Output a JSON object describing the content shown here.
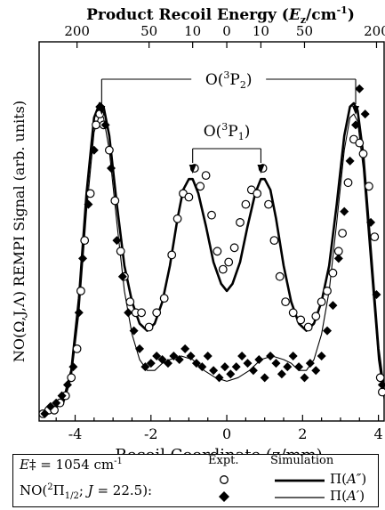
{
  "chart_data": {
    "type": "line",
    "title": "",
    "xlabel": "Recoil Coordinate (z/mm)",
    "ylabel": "NO(Ω,J,Λ) REMPI Signal (arb. units)",
    "top_axis_label": "Product Recoil Energy (E_z/cm⁻¹)",
    "top_axis_label_parts": {
      "main": "Product Recoil Energy (",
      "italic": "E",
      "sub": "z",
      "unit": "/cm",
      "sup": "-1",
      "close": ")"
    },
    "top_ticks": [
      {
        "label": "200",
        "z": -3.95
      },
      {
        "label": "50",
        "z": -2.05
      },
      {
        "label": "10",
        "z": -0.9
      },
      {
        "label": "0",
        "z": 0
      },
      {
        "label": "10",
        "z": 0.9
      },
      {
        "label": "50",
        "z": 2.05
      },
      {
        "label": "200",
        "z": 3.95
      }
    ],
    "xlim": [
      -4.95,
      4.15
    ],
    "ylim": [
      0,
      1.05
    ],
    "xticks": [
      "-4",
      "-2",
      "0",
      "2",
      "4"
    ],
    "xtick_values": [
      -4,
      -2,
      0,
      2,
      4
    ],
    "grid": false,
    "annotations": {
      "p2": {
        "text": "O(³P₂)",
        "base": "O(",
        "sup": "3",
        "mid": "P",
        "sub": "2",
        "close": ")",
        "arrows_at": [
          -3.3,
          3.4
        ]
      },
      "p1": {
        "text": "O(³P₁)",
        "base": "O(",
        "sup": "3",
        "mid": "P",
        "sub": "1",
        "close": ")",
        "arrows_at": [
          -0.9,
          0.9
        ]
      }
    },
    "series": [
      {
        "name": "Π(A″) simulation",
        "style": "thick-line",
        "x": [
          -4.9,
          -4.6,
          -4.3,
          -4.1,
          -3.9,
          -3.7,
          -3.5,
          -3.35,
          -3.25,
          -3.1,
          -2.9,
          -2.7,
          -2.5,
          -2.3,
          -2.1,
          -1.9,
          -1.7,
          -1.5,
          -1.3,
          -1.15,
          -1.0,
          -0.9,
          -0.75,
          -0.55,
          -0.35,
          -0.15,
          0,
          0.15,
          0.35,
          0.55,
          0.75,
          0.9,
          1.0,
          1.15,
          1.3,
          1.5,
          1.7,
          1.9,
          2.1,
          2.3,
          2.5,
          2.7,
          2.9,
          3.1,
          3.25,
          3.35,
          3.45,
          3.6,
          3.8,
          4.0,
          4.15
        ],
        "y": [
          0.02,
          0.03,
          0.06,
          0.14,
          0.34,
          0.63,
          0.84,
          0.88,
          0.87,
          0.79,
          0.6,
          0.43,
          0.33,
          0.27,
          0.25,
          0.27,
          0.33,
          0.43,
          0.56,
          0.64,
          0.67,
          0.67,
          0.63,
          0.54,
          0.44,
          0.38,
          0.36,
          0.38,
          0.44,
          0.54,
          0.63,
          0.67,
          0.67,
          0.64,
          0.56,
          0.43,
          0.33,
          0.27,
          0.25,
          0.27,
          0.33,
          0.43,
          0.6,
          0.79,
          0.87,
          0.88,
          0.86,
          0.74,
          0.47,
          0.2,
          0.08
        ]
      },
      {
        "name": "Π(A′) simulation",
        "style": "thin-line",
        "x": [
          -4.9,
          -4.6,
          -4.3,
          -4.1,
          -3.9,
          -3.7,
          -3.5,
          -3.35,
          -3.25,
          -3.1,
          -2.9,
          -2.7,
          -2.5,
          -2.3,
          -2.1,
          -1.9,
          -1.7,
          -1.5,
          -1.2,
          -0.9,
          -0.6,
          -0.3,
          0,
          0.3,
          0.6,
          0.9,
          1.2,
          1.5,
          1.7,
          1.9,
          2.1,
          2.3,
          2.5,
          2.7,
          2.9,
          3.1,
          3.25,
          3.35,
          3.45,
          3.6,
          3.8,
          4.0,
          4.15
        ],
        "y": [
          0.02,
          0.03,
          0.05,
          0.12,
          0.3,
          0.58,
          0.8,
          0.85,
          0.84,
          0.75,
          0.55,
          0.36,
          0.24,
          0.17,
          0.14,
          0.14,
          0.16,
          0.17,
          0.18,
          0.17,
          0.14,
          0.12,
          0.11,
          0.12,
          0.14,
          0.17,
          0.18,
          0.17,
          0.16,
          0.14,
          0.14,
          0.17,
          0.24,
          0.36,
          0.55,
          0.75,
          0.84,
          0.85,
          0.83,
          0.7,
          0.43,
          0.17,
          0.06
        ]
      },
      {
        "name": "Π(A″) expt.",
        "style": "open-circle",
        "x": [
          -4.85,
          -4.7,
          -4.55,
          -4.4,
          -4.25,
          -4.1,
          -3.95,
          -3.85,
          -3.75,
          -3.6,
          -3.45,
          -3.35,
          -3.25,
          -3.1,
          -2.95,
          -2.8,
          -2.7,
          -2.55,
          -2.4,
          -2.25,
          -2.05,
          -1.85,
          -1.65,
          -1.45,
          -1.3,
          -1.15,
          -1.0,
          -0.85,
          -0.7,
          -0.55,
          -0.4,
          -0.25,
          -0.1,
          0.05,
          0.2,
          0.35,
          0.5,
          0.65,
          0.8,
          0.95,
          1.1,
          1.25,
          1.4,
          1.55,
          1.75,
          1.95,
          2.15,
          2.35,
          2.5,
          2.65,
          2.8,
          2.95,
          3.05,
          3.2,
          3.35,
          3.5,
          3.6,
          3.75,
          3.9,
          4.05,
          4.1
        ],
        "y": [
          0.02,
          0.03,
          0.03,
          0.05,
          0.07,
          0.12,
          0.2,
          0.36,
          0.5,
          0.63,
          0.82,
          0.85,
          0.82,
          0.75,
          0.61,
          0.47,
          0.4,
          0.33,
          0.3,
          0.3,
          0.26,
          0.3,
          0.34,
          0.46,
          0.56,
          0.63,
          0.62,
          0.7,
          0.65,
          0.68,
          0.57,
          0.47,
          0.42,
          0.44,
          0.48,
          0.55,
          0.6,
          0.64,
          0.63,
          0.7,
          0.6,
          0.5,
          0.4,
          0.33,
          0.3,
          0.28,
          0.26,
          0.29,
          0.33,
          0.36,
          0.41,
          0.47,
          0.52,
          0.66,
          0.78,
          0.77,
          0.74,
          0.65,
          0.51,
          0.12,
          0.08
        ]
      },
      {
        "name": "Π(A′) expt.",
        "style": "filled-diamond",
        "x": [
          -4.8,
          -4.65,
          -4.5,
          -4.35,
          -4.2,
          -4.05,
          -3.9,
          -3.8,
          -3.65,
          -3.5,
          -3.35,
          -3.2,
          -3.05,
          -2.9,
          -2.75,
          -2.6,
          -2.45,
          -2.3,
          -2.15,
          -2.0,
          -1.85,
          -1.7,
          -1.55,
          -1.4,
          -1.25,
          -1.1,
          -0.95,
          -0.8,
          -0.65,
          -0.5,
          -0.35,
          -0.2,
          -0.05,
          0.1,
          0.25,
          0.4,
          0.55,
          0.7,
          0.85,
          1.0,
          1.15,
          1.3,
          1.45,
          1.6,
          1.75,
          1.9,
          2.05,
          2.2,
          2.35,
          2.5,
          2.65,
          2.8,
          2.95,
          3.1,
          3.25,
          3.4,
          3.5,
          3.65,
          3.8,
          3.95,
          4.1
        ],
        "y": [
          0.02,
          0.04,
          0.05,
          0.07,
          0.1,
          0.15,
          0.3,
          0.45,
          0.6,
          0.75,
          0.87,
          0.82,
          0.7,
          0.5,
          0.4,
          0.3,
          0.25,
          0.2,
          0.15,
          0.16,
          0.18,
          0.17,
          0.16,
          0.18,
          0.17,
          0.2,
          0.18,
          0.16,
          0.15,
          0.18,
          0.14,
          0.12,
          0.15,
          0.13,
          0.15,
          0.18,
          0.16,
          0.14,
          0.17,
          0.12,
          0.18,
          0.16,
          0.13,
          0.15,
          0.18,
          0.15,
          0.12,
          0.16,
          0.14,
          0.18,
          0.25,
          0.32,
          0.45,
          0.58,
          0.72,
          0.82,
          0.92,
          0.85,
          0.55,
          0.35,
          0.1
        ]
      }
    ]
  },
  "legend": {
    "energy_label": "E‡ = 1054 cm⁻¹",
    "energy_parts": {
      "E": "E",
      "dag": "‡",
      "eq": " = 1054 cm",
      "sup": "-1"
    },
    "state_label": "NO(²Π₁/₂; J = 22.5):",
    "state_parts": {
      "pre": "NO(",
      "sup": "2",
      "pi": "Π",
      "sub": "1/2",
      "semi": "; ",
      "J": "J",
      "tail": " = 22.5):"
    },
    "expt_header": "Expt.",
    "sim_header": "Simulation",
    "row1_label": "Π(A″)",
    "row1_parts": {
      "pi": "Π(",
      "A": "A″",
      "close": ")"
    },
    "row2_label": "Π(A′)",
    "row2_parts": {
      "pi": "Π(",
      "A": "A′",
      "close": ")"
    }
  }
}
